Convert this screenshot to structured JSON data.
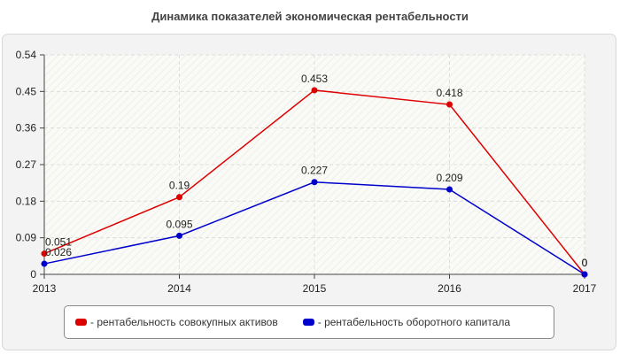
{
  "colors": {
    "series1": "#dd0000",
    "series2": "#0000cc",
    "plot_bg": "#fafaf7",
    "panel_bg": "#f3f3f3",
    "grid": "#dddddd"
  },
  "chart_data": {
    "type": "line",
    "title": "Динамика показателей экономическая рентабельности",
    "xlabel": "",
    "ylabel": "",
    "categories": [
      "2013",
      "2014",
      "2015",
      "2016",
      "2017"
    ],
    "ylim": [
      0,
      0.54
    ],
    "yticks": [
      "0",
      "0.09",
      "0.18",
      "0.27",
      "0.36",
      "0.45",
      "0.54"
    ],
    "grid": true,
    "legend_position": "bottom",
    "series": [
      {
        "name": "- рентабельность совокупных активов",
        "values": [
          0.051,
          0.19,
          0.453,
          0.418,
          0
        ],
        "labels": [
          "0.051",
          "0.19",
          "0.453",
          "0.418",
          "0"
        ]
      },
      {
        "name": "- рентабельность оборотного капитала",
        "values": [
          0.026,
          0.095,
          0.227,
          0.209,
          0
        ],
        "labels": [
          "0.026",
          "0.095",
          "0.227",
          "0.209",
          "0"
        ]
      }
    ]
  }
}
